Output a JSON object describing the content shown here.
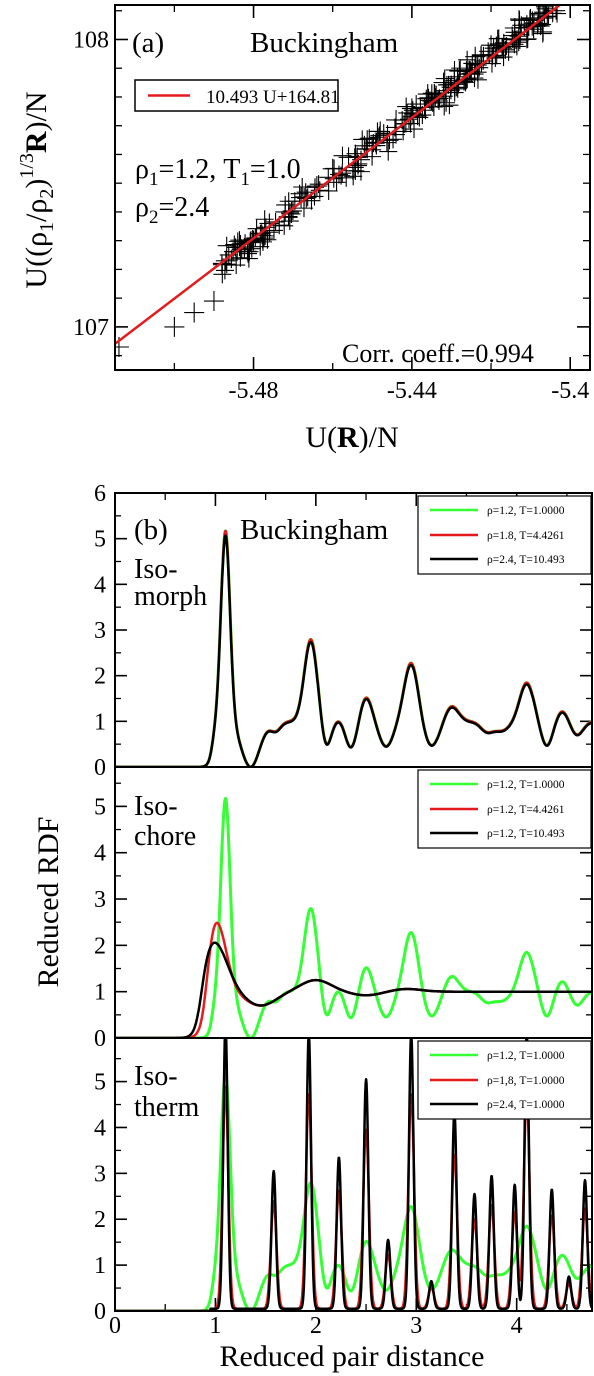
{
  "chart_data": [
    {
      "type": "scatter",
      "panel_label": "(a)",
      "title": "Buckingham",
      "xlabel_prefix": "U(",
      "xlabel_bold": "R",
      "xlabel_suffix": ")/N",
      "ylabel_prefix": "U((ρ",
      "ylabel_sub1": "1",
      "ylabel_mid": "/ρ",
      "ylabel_sub2": "2",
      "ylabel_paren": ")",
      "ylabel_sup": "1/3",
      "ylabel_bold": "R",
      "ylabel_suffix": ")/N",
      "xlim": [
        -5.515,
        -5.395
      ],
      "ylim": [
        106.85,
        108.12
      ],
      "xticks": [
        -5.48,
        -5.44,
        -5.4
      ],
      "xtick_labels": [
        "-5.48",
        "-5.44",
        "-5.4"
      ],
      "yticks": [
        107,
        108
      ],
      "ytick_labels": [
        "107",
        "108"
      ],
      "fit": {
        "label": "10.493 U+164.81",
        "slope": 10.493,
        "intercept": 164.81,
        "color": "#e41a1c"
      },
      "annotations": {
        "rho1_prefix": "ρ",
        "rho1_sub": "1",
        "rho1_rest": "=1.2, T",
        "t1_sub": "1",
        "t1_rest": "=1.0",
        "rho2_prefix": "ρ",
        "rho2_sub": "2",
        "rho2_rest": "=2.4",
        "corr": "Corr. coeff.=0.994"
      },
      "points": [
        [
          -5.514,
          106.93
        ],
        [
          -5.5,
          107.0
        ],
        [
          -5.495,
          107.05
        ],
        [
          -5.49,
          107.09
        ],
        [
          -5.487,
          107.23
        ],
        [
          -5.483,
          107.27
        ],
        [
          -5.48,
          107.3
        ],
        [
          -5.476,
          107.36
        ],
        [
          -5.472,
          107.4
        ],
        [
          -5.468,
          107.45
        ],
        [
          -5.464,
          107.49
        ],
        [
          -5.46,
          107.55
        ],
        [
          -5.456,
          107.59
        ],
        [
          -5.452,
          107.63
        ],
        [
          -5.448,
          107.68
        ],
        [
          -5.444,
          107.72
        ],
        [
          -5.44,
          107.76
        ],
        [
          -5.436,
          107.81
        ],
        [
          -5.432,
          107.85
        ],
        [
          -5.428,
          107.89
        ],
        [
          -5.424,
          107.94
        ],
        [
          -5.42,
          107.98
        ],
        [
          -5.414,
          108.04
        ],
        [
          -5.406,
          108.12
        ],
        [
          -5.398,
          108.18
        ]
      ]
    },
    {
      "type": "line",
      "panel_label": "(b)",
      "title": "Buckingham",
      "shared_ylabel": "Reduced RDF",
      "xlabel": "Reduced pair distance",
      "xlim": [
        0,
        4.75
      ],
      "xticks": [
        0,
        1,
        2,
        3,
        4
      ],
      "xtick_labels": [
        "0",
        "1",
        "2",
        "3",
        "4"
      ],
      "colors": {
        "green": "#33ff33",
        "red": "#e41a1c",
        "black": "#000000"
      },
      "panels": [
        {
          "name": "Iso-morph",
          "label_line1": "Iso-",
          "label_line2": "morph",
          "ylim": [
            0,
            6
          ],
          "yticks": [
            0,
            1,
            2,
            3,
            4,
            5,
            6
          ],
          "ytick_labels": [
            "0",
            "1",
            "2",
            "3",
            "4",
            "5",
            "6"
          ],
          "legend": [
            "ρ=1.2, T=1.0000",
            "ρ=1.8, T=4.4261",
            "ρ=2.4, T=10.493"
          ]
        },
        {
          "name": "Iso-chore",
          "label_line1": "Iso-",
          "label_line2": "chore",
          "ylim": [
            0,
            5.85
          ],
          "yticks": [
            0,
            1,
            2,
            3,
            4,
            5
          ],
          "ytick_labels": [
            "0",
            "1",
            "2",
            "3",
            "4",
            "5"
          ],
          "legend": [
            "ρ=1.2, T=1.0000",
            "ρ=1.2, T=4.4261",
            "ρ=1.2, T=10.493"
          ]
        },
        {
          "name": "Iso-therm",
          "label_line1": "Iso-",
          "label_line2": "therm",
          "ylim": [
            0,
            5.95
          ],
          "yticks": [
            0,
            1,
            2,
            3,
            4,
            5
          ],
          "ytick_labels": [
            "0",
            "1",
            "2",
            "3",
            "4",
            "5"
          ],
          "legend": [
            "ρ=1.2, T=1.0000",
            "ρ=1,8, T=1.0000",
            "ρ=2.4, T=1.0000"
          ]
        }
      ]
    }
  ]
}
